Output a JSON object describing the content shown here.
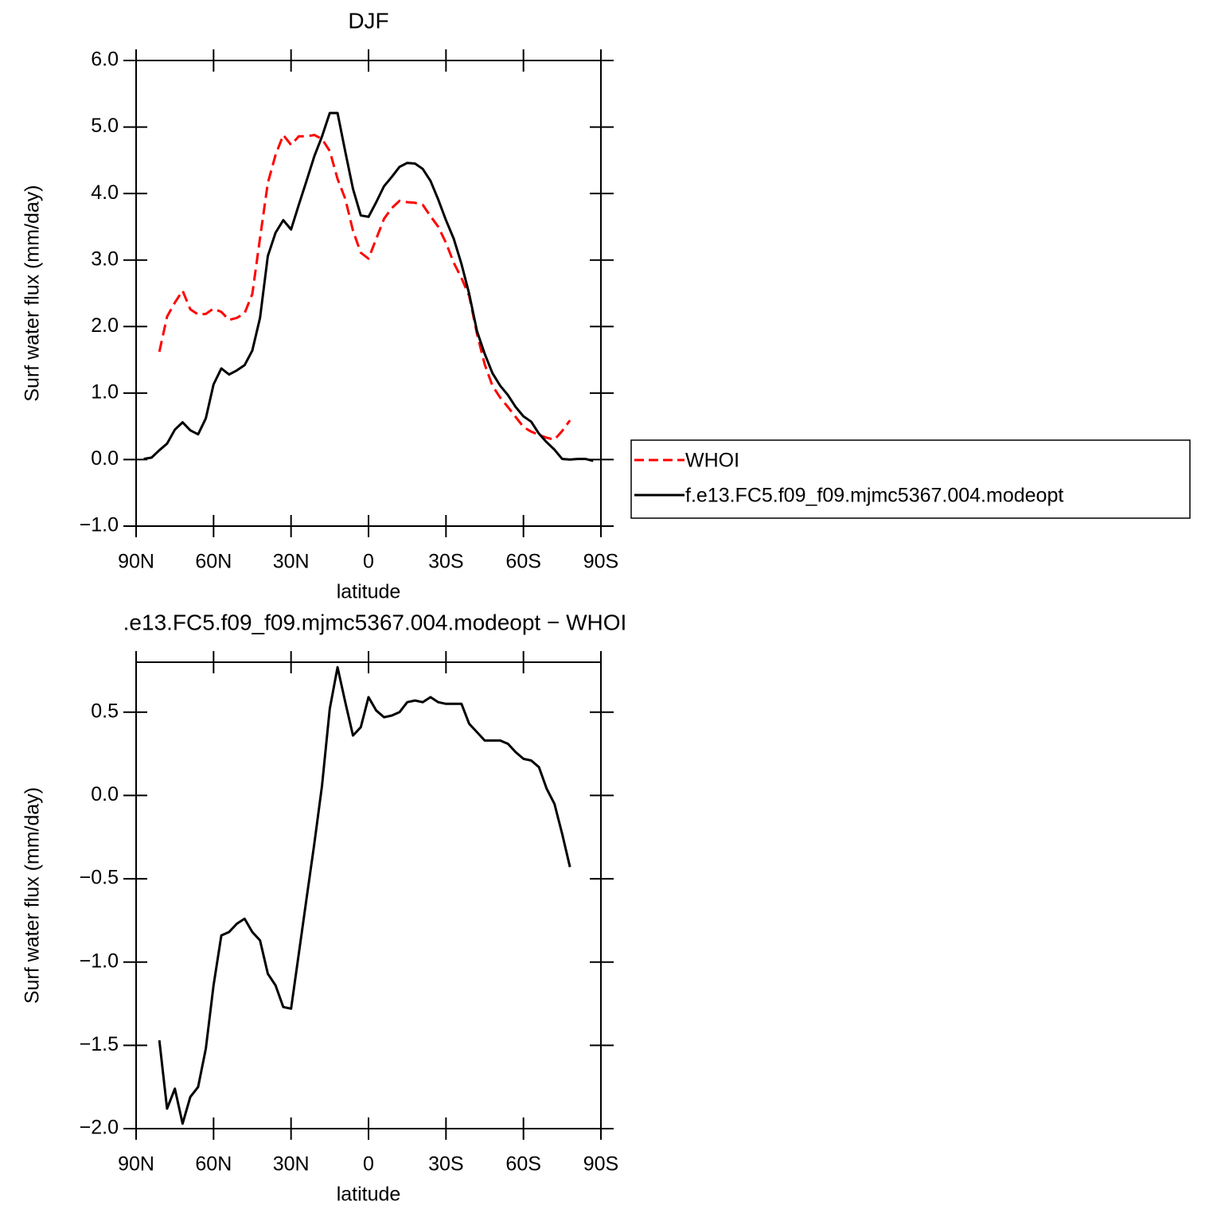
{
  "chart_data": [
    {
      "type": "line",
      "title": "DJF",
      "xlabel": "latitude",
      "ylabel": "Surf water flux (mm/day)",
      "x": [
        87,
        84,
        81,
        78,
        75,
        72,
        69,
        66,
        63,
        60,
        57,
        54,
        51,
        48,
        45,
        42,
        39,
        36,
        33,
        30,
        27,
        24,
        21,
        18,
        15,
        12,
        9,
        6,
        3,
        0,
        -3,
        -6,
        -9,
        -12,
        -15,
        -18,
        -21,
        -24,
        -27,
        -30,
        -33,
        -36,
        -39,
        -42,
        -45,
        -48,
        -51,
        -54,
        -57,
        -60,
        -63,
        -66,
        -69,
        -72,
        -75,
        -78,
        -81,
        -84,
        -87
      ],
      "series": [
        {
          "name": "WHOI",
          "color": "#ff0000",
          "line_style": "dashed",
          "values": [
            null,
            null,
            1.62,
            2.15,
            2.36,
            2.54,
            2.26,
            2.18,
            2.19,
            2.27,
            2.22,
            2.1,
            2.13,
            2.2,
            2.49,
            3.33,
            4.16,
            4.58,
            4.88,
            4.73,
            4.86,
            4.86,
            4.88,
            4.82,
            4.64,
            4.22,
            3.92,
            3.44,
            3.11,
            3.02,
            3.32,
            3.62,
            3.78,
            3.89,
            3.87,
            3.86,
            3.83,
            3.66,
            3.5,
            3.26,
            2.96,
            2.73,
            2.46,
            1.89,
            1.43,
            1.11,
            0.93,
            0.79,
            0.64,
            0.49,
            0.42,
            0.37,
            0.33,
            0.3,
            0.43,
            0.59,
            null,
            null,
            null
          ]
        },
        {
          "name": "f.e13.FC5.f09_f09.mjmc5367.004.modeopt",
          "color": "#000000",
          "line_style": "solid",
          "values": [
            0.01,
            0.03,
            0.14,
            0.24,
            0.45,
            0.56,
            0.44,
            0.38,
            0.62,
            1.13,
            1.37,
            1.28,
            1.34,
            1.42,
            1.64,
            2.13,
            3.06,
            3.41,
            3.6,
            3.46,
            3.83,
            4.19,
            4.56,
            4.86,
            5.21,
            5.21,
            4.63,
            4.07,
            3.67,
            3.65,
            3.87,
            4.11,
            4.25,
            4.4,
            4.46,
            4.45,
            4.37,
            4.19,
            3.91,
            3.6,
            3.32,
            2.94,
            2.49,
            1.93,
            1.59,
            1.3,
            1.11,
            0.97,
            0.79,
            0.65,
            0.57,
            0.39,
            0.26,
            0.15,
            0.01,
            0.0,
            0.01,
            0.01,
            -0.02
          ]
        }
      ],
      "xlim": [
        90,
        -90
      ],
      "xticks": [
        {
          "value": 90,
          "label": "90N"
        },
        {
          "value": 60,
          "label": "60N"
        },
        {
          "value": 30,
          "label": "30N"
        },
        0,
        {
          "value": -30,
          "label": "30S"
        },
        {
          "value": -60,
          "label": "60S"
        },
        {
          "value": -90,
          "label": "90S"
        }
      ],
      "ylim": [
        -1,
        6
      ],
      "yticks": [
        {
          "value": 6,
          "label": "6.0"
        },
        {
          "value": 5,
          "label": "5.0"
        },
        {
          "value": 4,
          "label": "4.0"
        },
        {
          "value": 3,
          "label": "3.0"
        },
        {
          "value": 2,
          "label": "2.0"
        },
        {
          "value": 1,
          "label": "1.0"
        },
        {
          "value": 0,
          "label": "0.0"
        },
        {
          "value": -1,
          "label": "−1.0"
        }
      ],
      "legend": "right"
    },
    {
      "type": "line",
      "title": ".e13.FC5.f09_f09.mjmc5367.004.modeopt − WHOI",
      "xlabel": "latitude",
      "ylabel": "Surf water flux (mm/day)",
      "x": [
        81,
        78,
        75,
        72,
        69,
        66,
        63,
        60,
        57,
        54,
        51,
        48,
        45,
        42,
        39,
        36,
        33,
        30,
        27,
        24,
        21,
        18,
        15,
        12,
        9,
        6,
        3,
        0,
        -3,
        -6,
        -9,
        -12,
        -15,
        -18,
        -21,
        -24,
        -27,
        -30,
        -33,
        -36,
        -39,
        -42,
        -45,
        -48,
        -51,
        -54,
        -57,
        -60,
        -63,
        -66,
        -69,
        -72,
        -75,
        -78
      ],
      "values": [
        -1.47,
        -1.88,
        -1.76,
        -1.97,
        -1.81,
        -1.75,
        -1.52,
        -1.14,
        -0.84,
        -0.82,
        -0.77,
        -0.74,
        -0.82,
        -0.87,
        -1.07,
        -1.14,
        -1.27,
        -1.28,
        -0.95,
        -0.62,
        -0.29,
        0.06,
        0.52,
        0.77,
        0.56,
        0.36,
        0.41,
        0.59,
        0.51,
        0.47,
        0.48,
        0.5,
        0.56,
        0.57,
        0.56,
        0.59,
        0.56,
        0.55,
        0.55,
        0.55,
        0.43,
        0.38,
        0.33,
        0.33,
        0.33,
        0.31,
        0.26,
        0.22,
        0.21,
        0.17,
        0.04,
        -0.05,
        -0.23,
        -0.43
      ],
      "color": "#000000",
      "line_style": "solid",
      "xlim": [
        90,
        -90
      ],
      "xticks": [
        {
          "value": 90,
          "label": "90N"
        },
        {
          "value": 60,
          "label": "60N"
        },
        {
          "value": 30,
          "label": "30N"
        },
        0,
        {
          "value": -30,
          "label": "30S"
        },
        {
          "value": -60,
          "label": "60S"
        },
        {
          "value": -90,
          "label": "90S"
        }
      ],
      "ylim": [
        -2,
        0.8
      ],
      "yticks": [
        {
          "value": 0.5,
          "label": "0.5"
        },
        {
          "value": 0,
          "label": "0.0"
        },
        {
          "value": -0.5,
          "label": "−0.5"
        },
        {
          "value": -1,
          "label": "−1.0"
        },
        {
          "value": -1.5,
          "label": "−1.5"
        },
        {
          "value": -2,
          "label": "−2.0"
        }
      ]
    }
  ]
}
